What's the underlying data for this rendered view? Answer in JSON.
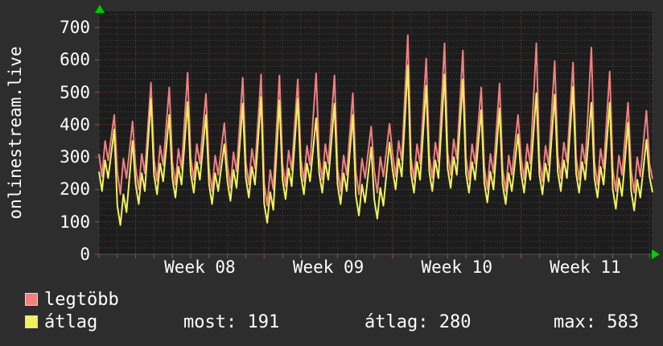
{
  "vertical_label": "onlinestream.live",
  "legend": {
    "items": [
      {
        "label": "legtöbb",
        "color": "#f08080"
      },
      {
        "label": "átlag",
        "color": "#f1f160"
      }
    ],
    "stats": [
      {
        "label": "most",
        "value": "191",
        "text": "most: 191"
      },
      {
        "label": "átlag",
        "value": "280",
        "text": "átlag: 280"
      },
      {
        "label": "max",
        "value": "583",
        "text": "max: 583"
      }
    ]
  },
  "chart_data": {
    "type": "line",
    "title": "onlinestream.live",
    "xlabel": "",
    "ylabel": "",
    "x_axis": {
      "labels": [
        "Week 08",
        "Week 09",
        "Week 10",
        "Week 11"
      ]
    },
    "y_axis": {
      "min": 0,
      "max": 750,
      "ticks": [
        0,
        100,
        200,
        300,
        400,
        500,
        600,
        700
      ],
      "minor_step": 20
    },
    "grid": "dotted; red major lines every 100 and at week boundaries, gray minor lines every 20 and each day",
    "legend_position": "bottom-left",
    "samples_per_day": 6,
    "week_boundary_indices": [
      12,
      54,
      96,
      138
    ],
    "week_label_center_indices": [
      33,
      75,
      117,
      159
    ],
    "colors": {
      "background": "#2d2d2d",
      "plot_background": "#1c1c1c",
      "minor_grid": "#474747",
      "major_grid": "#8d4242",
      "axis_tick_red": "#b04848",
      "arrow_green": "#00cc00"
    },
    "series": [
      {
        "name": "legtöbb",
        "color": "#f08080",
        "values": [
          310,
          240,
          350,
          290,
          360,
          430,
          255,
          185,
          295,
          235,
          320,
          410,
          270,
          200,
          310,
          250,
          390,
          530,
          295,
          225,
          335,
          275,
          395,
          515,
          285,
          215,
          325,
          265,
          412,
          560,
          300,
          230,
          340,
          280,
          388,
          495,
          265,
          195,
          305,
          245,
          325,
          405,
          275,
          205,
          315,
          255,
          400,
          545,
          285,
          215,
          325,
          265,
          410,
          555,
          220,
          150,
          260,
          200,
          376,
          552,
          280,
          210,
          320,
          260,
          400,
          540,
          295,
          225,
          335,
          275,
          417,
          558,
          300,
          230,
          340,
          280,
          416,
          552,
          265,
          195,
          305,
          245,
          371,
          497,
          255,
          185,
          295,
          235,
          314,
          394,
          260,
          190,
          300,
          240,
          321,
          403,
          310,
          240,
          350,
          290,
          483,
          676,
          300,
          230,
          340,
          280,
          442,
          604,
          305,
          235,
          345,
          285,
          468,
          651,
          315,
          245,
          355,
          295,
          462,
          629,
          300,
          230,
          340,
          280,
          398,
          515,
          270,
          200,
          310,
          250,
          389,
          527,
          265,
          195,
          305,
          245,
          338,
          430,
          300,
          230,
          340,
          280,
          466,
          651,
          295,
          225,
          335,
          275,
          436,
          596,
          305,
          235,
          345,
          285,
          439,
          592,
          300,
          230,
          340,
          280,
          459,
          638,
          285,
          215,
          325,
          265,
          415,
          564,
          265,
          195,
          305,
          245,
          357,
          468,
          260,
          190,
          300,
          240,
          342,
          443,
          280,
          232
        ]
      },
      {
        "name": "átlag",
        "color": "#f1f160",
        "values": [
          255,
          195,
          290,
          235,
          310,
          385,
          150,
          90,
          185,
          130,
          240,
          350,
          215,
          155,
          250,
          195,
          338,
          480,
          245,
          185,
          280,
          225,
          328,
          430,
          235,
          175,
          270,
          215,
          343,
          470,
          250,
          190,
          285,
          230,
          330,
          430,
          215,
          155,
          250,
          195,
          268,
          340,
          225,
          165,
          260,
          205,
          335,
          465,
          235,
          175,
          270,
          215,
          350,
          485,
          157,
          97,
          192,
          137,
          306,
          475,
          230,
          170,
          265,
          210,
          345,
          480,
          245,
          185,
          280,
          225,
          323,
          420,
          250,
          190,
          285,
          230,
          348,
          465,
          215,
          155,
          250,
          195,
          313,
          430,
          180,
          120,
          215,
          160,
          245,
          330,
          170,
          110,
          205,
          150,
          248,
          345,
          260,
          200,
          295,
          240,
          412,
          583,
          250,
          190,
          285,
          230,
          375,
          520,
          255,
          195,
          290,
          235,
          395,
          555,
          265,
          205,
          300,
          245,
          393,
          540,
          250,
          190,
          285,
          230,
          338,
          445,
          220,
          160,
          255,
          200,
          325,
          450,
          215,
          155,
          250,
          195,
          283,
          370,
          250,
          190,
          285,
          230,
          364,
          497,
          245,
          185,
          280,
          225,
          359,
          493,
          255,
          195,
          290,
          235,
          376,
          517,
          250,
          190,
          285,
          230,
          349,
          468,
          235,
          175,
          270,
          215,
          342,
          468,
          200,
          140,
          235,
          180,
          293,
          406,
          195,
          135,
          230,
          175,
          265,
          354,
          240,
          191
        ]
      }
    ],
    "stats": {
      "most": 191,
      "átlag": 280,
      "max": 583
    }
  }
}
